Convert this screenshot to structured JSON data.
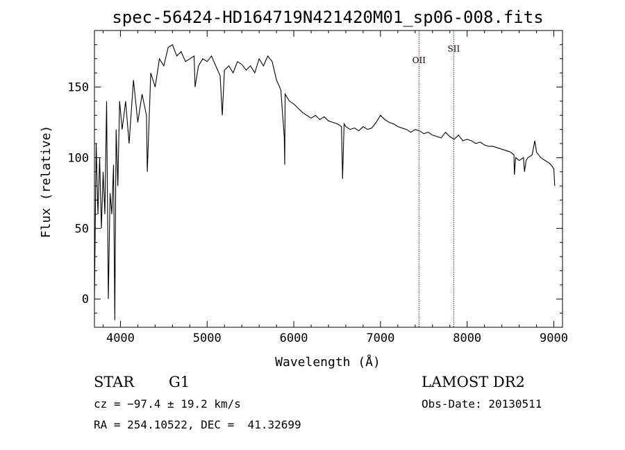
{
  "chart_data": {
    "type": "line",
    "title": "spec-56424-HD164719N421420M01_sp06-008.fits",
    "xlabel": "Wavelength (Å)",
    "ylabel": "Flux (relative)",
    "xlim": [
      3700,
      9100
    ],
    "ylim": [
      -20,
      190
    ],
    "x_ticks": [
      4000,
      5000,
      6000,
      7000,
      8000,
      9000
    ],
    "y_ticks": [
      0,
      50,
      100,
      150
    ],
    "grid": false,
    "line_color": "#000000",
    "marker_color": "#cc0000",
    "series": [
      {
        "x": [
          3700,
          3720,
          3740,
          3760,
          3780,
          3800,
          3820,
          3840,
          3860,
          3880,
          3900,
          3920,
          3935,
          3950,
          3970,
          3990,
          4020,
          4060,
          4100,
          4150,
          4200,
          4250,
          4300,
          4310,
          4350,
          4400,
          4450,
          4500,
          4550,
          4600,
          4650,
          4700,
          4750,
          4800,
          4850,
          4861,
          4900,
          4950,
          5000,
          5050,
          5100,
          5150,
          5175,
          5200,
          5250,
          5300,
          5350,
          5400,
          5450,
          5500,
          5550,
          5600,
          5650,
          5700,
          5750,
          5800,
          5850,
          5890,
          5895,
          5900,
          5950,
          6000,
          6050,
          6100,
          6150,
          6200,
          6250,
          6300,
          6350,
          6400,
          6450,
          6500,
          6550,
          6563,
          6580,
          6600,
          6650,
          6700,
          6750,
          6800,
          6850,
          6900,
          6950,
          7000,
          7050,
          7100,
          7150,
          7200,
          7250,
          7300,
          7350,
          7400,
          7450,
          7500,
          7550,
          7600,
          7650,
          7700,
          7750,
          7800,
          7850,
          7900,
          7950,
          8000,
          8050,
          8100,
          8150,
          8200,
          8250,
          8300,
          8350,
          8400,
          8450,
          8500,
          8540,
          8545,
          8560,
          8600,
          8650,
          8662,
          8680,
          8700,
          8750,
          8780,
          8800,
          8850,
          8900,
          8950,
          8980,
          9000,
          9010
        ],
        "y": [
          0,
          110,
          60,
          100,
          50,
          90,
          60,
          140,
          0,
          75,
          60,
          95,
          -15,
          120,
          80,
          140,
          120,
          140,
          110,
          155,
          125,
          145,
          130,
          90,
          160,
          150,
          170,
          165,
          178,
          180,
          172,
          175,
          168,
          170,
          172,
          150,
          165,
          170,
          168,
          172,
          165,
          158,
          130,
          162,
          165,
          160,
          168,
          166,
          162,
          165,
          160,
          170,
          165,
          172,
          168,
          155,
          148,
          115,
          95,
          145,
          140,
          138,
          135,
          132,
          130,
          128,
          130,
          127,
          129,
          126,
          125,
          124,
          122,
          85,
          124,
          122,
          120,
          121,
          119,
          122,
          120,
          121,
          125,
          130,
          127,
          125,
          124,
          122,
          121,
          120,
          118,
          120,
          119,
          117,
          118,
          116,
          115,
          114,
          118,
          115,
          113,
          116,
          112,
          113,
          112,
          110,
          111,
          109,
          108,
          108,
          107,
          106,
          105,
          104,
          102,
          88,
          100,
          98,
          100,
          90,
          98,
          100,
          102,
          112,
          104,
          100,
          98,
          96,
          94,
          92,
          80
        ]
      }
    ],
    "line_markers": [
      {
        "label": "OII",
        "x": 7444,
        "label_y": 167
      },
      {
        "label": "SII",
        "x": 7845,
        "label_y": 175
      }
    ]
  },
  "info": {
    "object_class": "STAR",
    "subclass": "G1",
    "survey": "LAMOST DR2",
    "redshift": "cz = −97.4 ± 19.2 km/s",
    "obs_date": "Obs-Date: 20130511",
    "coords": "RA = 254.10522, DEC =  41.32699"
  }
}
